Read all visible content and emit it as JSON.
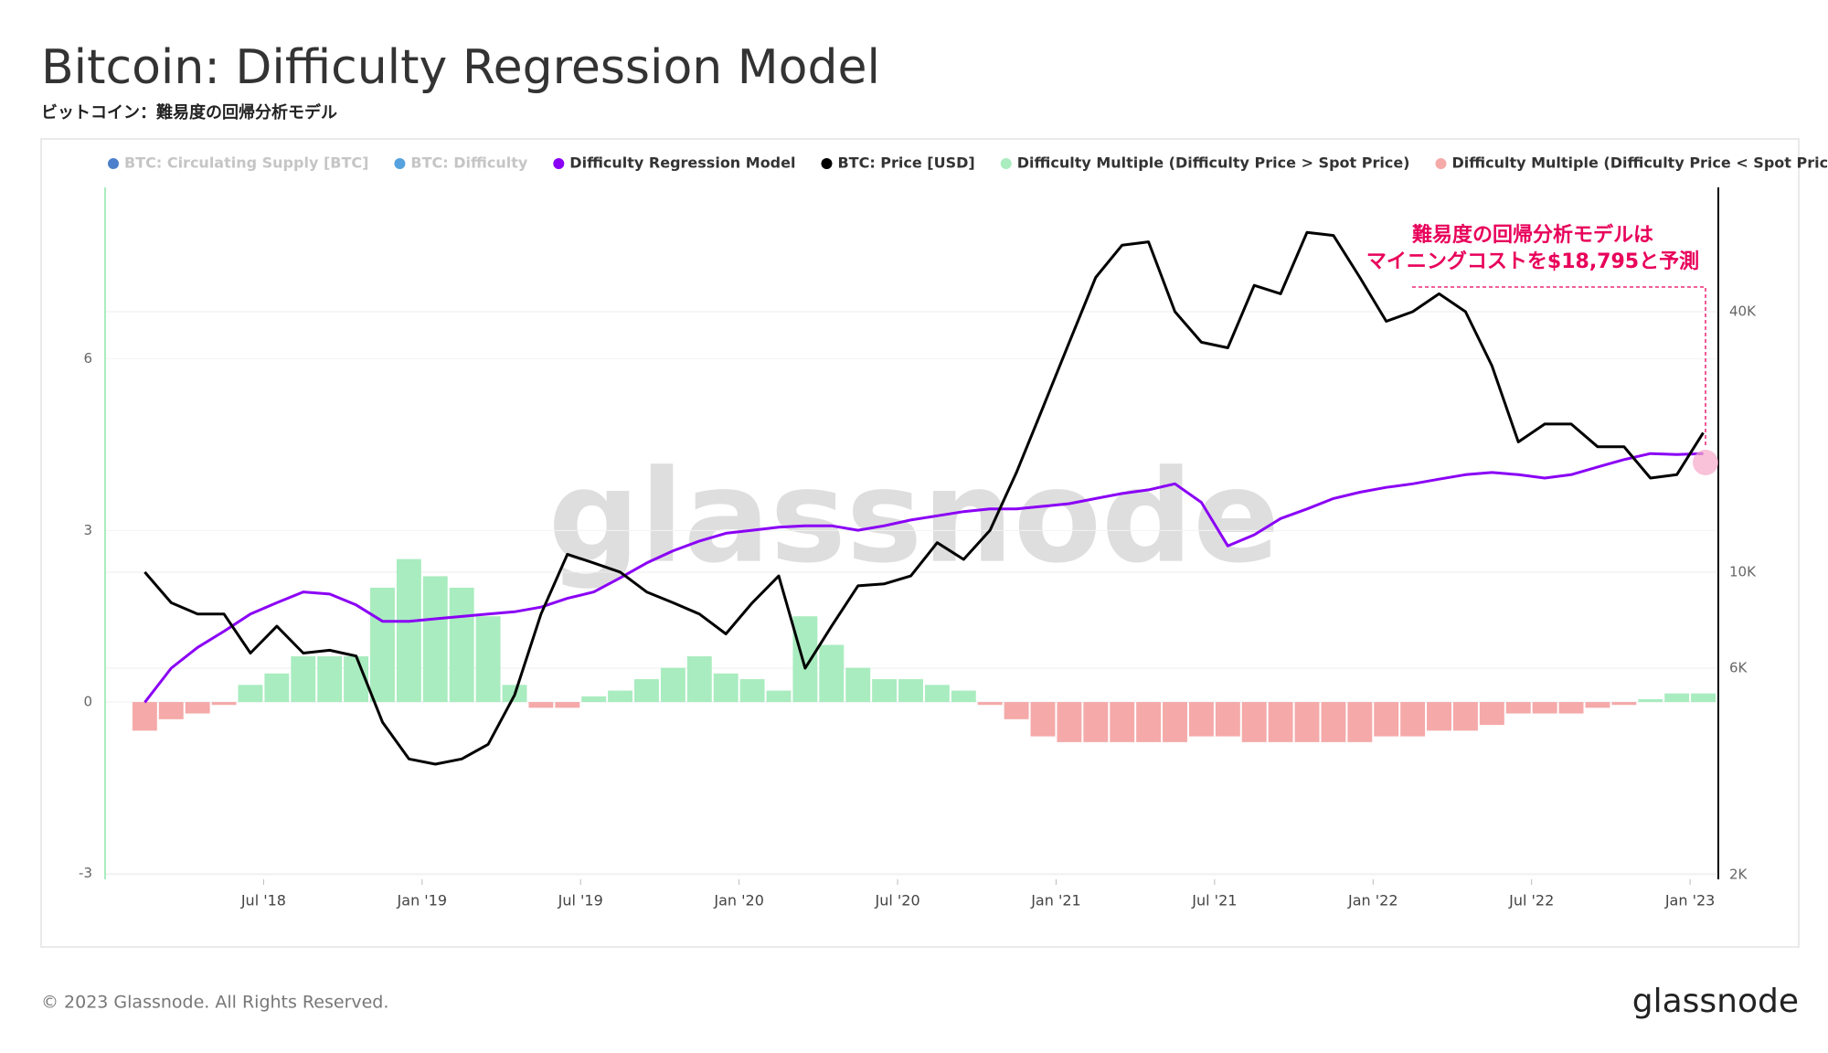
{
  "chart_data": {
    "type": "line",
    "title": "Bitcoin: Difficulty Regression Model",
    "subtitle": "ビットコイン：難易度の回帰分析モデル",
    "annotation": [
      "難易度の回帰分析モデルは",
      "マイニングコストを$18,795と予測"
    ],
    "watermark": "glassnode",
    "footer": "© 2023 Glassnode. All Rights Reserved.",
    "logo": "glassnode",
    "legend_hidden": [
      {
        "name": "BTC: Circulating Supply [BTC]",
        "color": "#1f5fbf"
      },
      {
        "name": "BTC: Difficulty",
        "color": "#2a8bd6"
      }
    ],
    "legend_more": "---",
    "x": [
      "2018-02",
      "2018-03",
      "2018-04",
      "2018-05",
      "2018-06",
      "2018-07",
      "2018-08",
      "2018-09",
      "2018-10",
      "2018-11",
      "2018-12",
      "2019-01",
      "2019-02",
      "2019-03",
      "2019-04",
      "2019-05",
      "2019-06",
      "2019-07",
      "2019-08",
      "2019-09",
      "2019-10",
      "2019-11",
      "2019-12",
      "2020-01",
      "2020-02",
      "2020-03",
      "2020-04",
      "2020-05",
      "2020-06",
      "2020-07",
      "2020-08",
      "2020-09",
      "2020-10",
      "2020-11",
      "2020-12",
      "2021-01",
      "2021-02",
      "2021-03",
      "2021-04",
      "2021-05",
      "2021-06",
      "2021-07",
      "2021-08",
      "2021-09",
      "2021-10",
      "2021-11",
      "2021-12",
      "2022-01",
      "2022-02",
      "2022-03",
      "2022-04",
      "2022-05",
      "2022-06",
      "2022-07",
      "2022-08",
      "2022-09",
      "2022-10",
      "2022-11",
      "2022-12",
      "2023-01"
    ],
    "xlim": [
      "2018-01",
      "2023-02"
    ],
    "xticks": [
      {
        "value": "2018-07",
        "label": "Jul '18"
      },
      {
        "value": "2019-01",
        "label": "Jan '19"
      },
      {
        "value": "2019-07",
        "label": "Jul '19"
      },
      {
        "value": "2020-01",
        "label": "Jan '20"
      },
      {
        "value": "2020-07",
        "label": "Jul '20"
      },
      {
        "value": "2021-01",
        "label": "Jan '21"
      },
      {
        "value": "2021-07",
        "label": "Jul '21"
      },
      {
        "value": "2022-01",
        "label": "Jan '22"
      },
      {
        "value": "2022-07",
        "label": "Jul '22"
      },
      {
        "value": "2023-01",
        "label": "Jan '23"
      }
    ],
    "ylim": [
      -3.1,
      9
    ],
    "yticks": [
      -3,
      0,
      3,
      6
    ],
    "y2lim": [
      1950,
      77500
    ],
    "y2log": true,
    "y2ticks": [
      {
        "value": 2000,
        "label": "2K"
      },
      {
        "value": 6000,
        "label": "6K"
      },
      {
        "value": 10000,
        "label": "10K"
      },
      {
        "value": 40000,
        "label": "40K"
      }
    ],
    "grid": true,
    "series": [
      {
        "name": "Difficulty Regression Model",
        "type": "line",
        "axis": "y2",
        "color": "#8a00f5",
        "values": [
          5000,
          6000,
          6700,
          7300,
          8000,
          8500,
          9000,
          8900,
          8400,
          7700,
          7700,
          7800,
          7900,
          8000,
          8100,
          8300,
          8700,
          9000,
          9700,
          10500,
          11200,
          11800,
          12300,
          12500,
          12700,
          12800,
          12800,
          12500,
          12800,
          13200,
          13500,
          13800,
          14000,
          14000,
          14200,
          14400,
          14800,
          15200,
          15500,
          16000,
          14500,
          11500,
          12200,
          13300,
          14000,
          14800,
          15300,
          15700,
          16000,
          16400,
          16800,
          17000,
          16800,
          16500,
          16800,
          17500,
          18200,
          18800,
          18700,
          18795
        ]
      },
      {
        "name": "BTC: Price [USD]",
        "type": "line",
        "axis": "y2",
        "color": "#000000",
        "values": [
          10000,
          8500,
          8000,
          8000,
          6500,
          7500,
          6500,
          6600,
          6400,
          4500,
          3700,
          3600,
          3700,
          4000,
          5200,
          8000,
          11000,
          10500,
          10000,
          9000,
          8500,
          8000,
          7200,
          8500,
          9800,
          6000,
          7500,
          9300,
          9400,
          9800,
          11700,
          10700,
          12500,
          17000,
          24000,
          34000,
          48000,
          57000,
          58000,
          40000,
          34000,
          33000,
          46000,
          44000,
          61000,
          60000,
          48000,
          38000,
          40000,
          44000,
          40000,
          30000,
          20000,
          22000,
          22000,
          19500,
          19500,
          16500,
          16800,
          21000
        ]
      },
      {
        "name": "Difficulty Multiple (Difficulty Price > Spot Price)",
        "type": "bar",
        "color": "#a9ecbf",
        "values": [
          null,
          null,
          null,
          null,
          0.3,
          0.5,
          0.8,
          0.8,
          0.8,
          2.0,
          2.5,
          2.2,
          2.0,
          1.5,
          0.3,
          null,
          null,
          0.1,
          0.2,
          0.4,
          0.6,
          0.8,
          0.5,
          0.4,
          0.2,
          1.5,
          1.0,
          0.6,
          0.4,
          0.4,
          0.3,
          0.2,
          null,
          null,
          null,
          null,
          null,
          null,
          null,
          null,
          null,
          null,
          null,
          null,
          null,
          null,
          null,
          null,
          null,
          null,
          null,
          null,
          null,
          null,
          null,
          null,
          null,
          0.05,
          0.15,
          0.15
        ]
      },
      {
        "name": "Difficulty Multiple (Difficulty Price < Spot Price)",
        "type": "bar",
        "color": "#f5a9a9",
        "values": [
          -0.5,
          -0.3,
          -0.2,
          -0.05,
          null,
          null,
          null,
          null,
          null,
          null,
          null,
          null,
          null,
          null,
          null,
          -0.1,
          -0.1,
          null,
          null,
          null,
          null,
          null,
          null,
          null,
          null,
          null,
          null,
          null,
          null,
          null,
          null,
          null,
          -0.05,
          -0.3,
          -0.6,
          -0.7,
          -0.7,
          -0.7,
          -0.7,
          -0.7,
          -0.6,
          -0.6,
          -0.7,
          -0.7,
          -0.7,
          -0.7,
          -0.7,
          -0.6,
          -0.6,
          -0.5,
          -0.5,
          -0.4,
          -0.2,
          -0.2,
          -0.2,
          -0.1,
          -0.05,
          null,
          null,
          null
        ]
      }
    ]
  }
}
